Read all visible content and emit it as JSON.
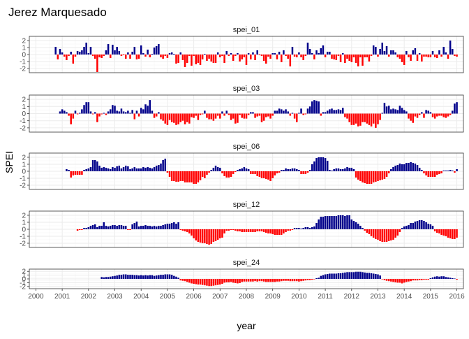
{
  "chart_data": {
    "type": "bar",
    "title": "Jerez Marquesado",
    "xlabel": "year",
    "ylabel": "SPEI",
    "xlim": [
      1999.75,
      2016.25
    ],
    "ylim": [
      -2.6,
      2.6
    ],
    "x_ticks": [
      "2000",
      "2001",
      "2002",
      "2003",
      "2004",
      "2005",
      "2006",
      "2007",
      "2008",
      "2009",
      "2010",
      "2011",
      "2012",
      "2013",
      "2014",
      "2015",
      "2016"
    ],
    "y_ticks": [
      "-2",
      "-1",
      "0",
      "1",
      "2"
    ],
    "grid": true,
    "colors": {
      "positive": "#00008B",
      "negative": "#FF0000",
      "panel_border": "#333333",
      "grid": "#EBEBEB",
      "strip_bg": "#FFFFFF"
    },
    "series_start": {
      "spei_01": 2000.75,
      "spei_03": 2000.917,
      "spei_06": 2001.167,
      "spei_12": 2001.583,
      "spei_24": 2002.5
    },
    "series_end": 2016.0,
    "panels": [
      {
        "name": "spei_01",
        "values": [
          1.1,
          -0.7,
          0.8,
          0.3,
          -0.3,
          -0.8,
          -0.2,
          0.4,
          -1.3,
          -0.3,
          0.5,
          0.4,
          0.6,
          1.1,
          1.7,
          0.2,
          1.1,
          -0.2,
          -0.6,
          -2.5,
          -0.4,
          -0.5,
          -0.2,
          0.6,
          1.5,
          -0.5,
          1.4,
          0.6,
          1.1,
          0.5,
          -0.2,
          -0.1,
          -0.6,
          0.3,
          -0.6,
          0.4,
          1.1,
          -0.7,
          -0.6,
          1.3,
          0.2,
          -0.3,
          0.7,
          -0.4,
          0.1,
          1.0,
          1.2,
          1.5,
          -0.4,
          -0.6,
          -0.2,
          -0.5,
          0.2,
          0.3,
          0.1,
          -1.3,
          -1.2,
          0.3,
          -0.8,
          -1.8,
          -1.2,
          -0.2,
          -1.6,
          -0.2,
          -1.4,
          -1.2,
          -1.5,
          -0.7,
          0.1,
          -0.9,
          -0.6,
          -1.0,
          -1.2,
          -1.2,
          0.3,
          -0.4,
          -0.2,
          -1.2,
          0.5,
          -0.2,
          0.2,
          -0.9,
          -0.2,
          0.2,
          -1.0,
          -0.7,
          -0.4,
          -1.5,
          0.2,
          -0.7,
          0.3,
          -0.8,
          0.6,
          -0.1,
          -0.2,
          -0.9,
          -1.3,
          -0.3,
          -0.6,
          0.2,
          0.2,
          -0.7,
          0.4,
          -1.1,
          0.6,
          -0.2,
          -0.6,
          -1.7,
          1.1,
          -0.3,
          -0.4,
          0.3,
          -0.4,
          -0.8,
          -0.2,
          1.7,
          0.8,
          0.2,
          -0.7,
          0.6,
          0.2,
          0.9,
          1.3,
          -0.4,
          0.4,
          0.4,
          -0.6,
          -0.7,
          -0.8,
          -0.2,
          -1.1,
          0.2,
          -1.2,
          -0.6,
          -0.9,
          -1.1,
          -0.4,
          -1.2,
          -1.7,
          -0.4,
          -1.6,
          -0.4,
          -0.4,
          -1.0,
          -0.2,
          1.3,
          1.1,
          -0.3,
          0.8,
          1.7,
          0.5,
          1.2,
          -0.3,
          0.6,
          0.6,
          0.3,
          -0.4,
          -0.6,
          -1.1,
          -1.5,
          0.5,
          -0.4,
          -0.9,
          0.6,
          0.9,
          -0.9,
          0.2,
          -1.0,
          -0.3,
          -0.3,
          -0.4,
          -0.4,
          0.5,
          -0.4,
          -0.5,
          0.6,
          -0.3,
          1.1,
          0.3,
          -0.6,
          2.0,
          0.8,
          -0.2,
          -0.3,
          0.4,
          -0.3,
          0.9,
          -0.6,
          -1.5
        ]
      },
      {
        "name": "spei_03",
        "values": [
          0.3,
          0.6,
          0.4,
          0.2,
          -0.3,
          -1.5,
          -0.7,
          0.4,
          -0.1,
          0.1,
          0.6,
          1.2,
          1.6,
          1.6,
          0.3,
          -0.1,
          0.2,
          -1.2,
          -0.4,
          -0.1,
          0.1,
          -0.2,
          0.3,
          0.6,
          1.2,
          1.1,
          0.4,
          0.3,
          0.7,
          0.3,
          0.2,
          0.4,
          0.1,
          0.5,
          -0.8,
          0.4,
          -0.4,
          0.8,
          0.6,
          1.3,
          1.1,
          1.9,
          0.4,
          -0.6,
          -0.4,
          0.2,
          -0.8,
          -1.0,
          -1.4,
          -1.6,
          -0.9,
          -1.2,
          -1.3,
          -1.6,
          -1.5,
          -1.2,
          -1.0,
          -1.5,
          -1.2,
          -1.4,
          -0.5,
          -0.6,
          -0.3,
          -0.9,
          -0.2,
          -0.1,
          0.4,
          -0.6,
          -0.8,
          -0.8,
          -1.0,
          -0.7,
          -0.3,
          -0.7,
          0.3,
          -0.3,
          0.4,
          -0.2,
          -0.9,
          -0.7,
          -1.4,
          -1.3,
          -0.2,
          -0.6,
          -0.7,
          -0.7,
          -0.2,
          0.2,
          0.2,
          -0.6,
          -0.4,
          -0.3,
          -1.2,
          -1.0,
          -0.5,
          -0.4,
          -0.7,
          -0.3,
          0.4,
          0.4,
          0.7,
          0.6,
          0.4,
          0.6,
          0.3,
          -0.3,
          0.1,
          -0.7,
          -1.2,
          0.1,
          0.7,
          -0.2,
          -0.1,
          0.7,
          1.0,
          1.7,
          1.9,
          1.8,
          1.7,
          -0.3,
          0.2,
          0.2,
          0.4,
          0.6,
          0.7,
          0.5,
          0.5,
          0.6,
          0.5,
          0.8,
          -0.5,
          -0.7,
          -1.2,
          -1.6,
          -1.6,
          -1.4,
          -1.8,
          -1.7,
          -1.2,
          -1.2,
          -1.4,
          -1.6,
          -1.8,
          -1.4,
          -2.0,
          -1.5,
          -0.9,
          0.1,
          1.5,
          1.0,
          1.1,
          0.6,
          0.7,
          0.6,
          0.5,
          1.1,
          0.8,
          0.5,
          0.3,
          -0.7,
          -1.0,
          -1.3,
          -0.4,
          -0.6,
          -0.2,
          0.2,
          -0.6,
          0.5,
          0.4,
          0.2,
          -0.5,
          -0.7,
          -0.4,
          -0.3,
          -0.3,
          -0.5,
          -0.6,
          -0.4,
          -0.2,
          0.4,
          1.4,
          1.6,
          1.5,
          -0.3,
          -0.6,
          -0.9,
          -1.0
        ]
      },
      {
        "name": "spei_06",
        "values": [
          0.3,
          0.2,
          -0.9,
          -0.6,
          -0.5,
          -0.5,
          -0.5,
          -0.5,
          0.2,
          0.3,
          0.4,
          0.6,
          1.6,
          1.6,
          1.4,
          0.8,
          0.5,
          0.6,
          0.5,
          0.4,
          0.3,
          0.6,
          0.5,
          0.7,
          0.8,
          0.4,
          0.6,
          0.8,
          0.7,
          0.3,
          0.4,
          0.6,
          0.4,
          0.4,
          0.4,
          0.6,
          0.5,
          0.6,
          0.5,
          0.4,
          0.6,
          0.8,
          0.9,
          1.1,
          1.6,
          1.8,
          -0.2,
          -0.8,
          -1.4,
          -1.4,
          -1.5,
          -1.5,
          -1.4,
          -1.4,
          -1.6,
          -1.6,
          -1.6,
          -1.6,
          -1.8,
          -1.8,
          -1.6,
          -1.3,
          -0.8,
          -1.0,
          -0.5,
          -0.2,
          0.2,
          0.5,
          0.8,
          0.6,
          0.5,
          -0.3,
          -0.7,
          -0.9,
          -0.9,
          -0.8,
          -0.4,
          -0.1,
          0.2,
          0.3,
          0.4,
          0.6,
          0.4,
          0.3,
          -0.4,
          -0.4,
          -0.4,
          -0.7,
          -0.8,
          -1.0,
          -1.0,
          -1.1,
          -1.2,
          -1.4,
          -1.0,
          -0.6,
          -0.3,
          -0.2,
          0.2,
          0.2,
          0.4,
          0.3,
          0.3,
          0.4,
          0.4,
          0.3,
          0.2,
          -0.4,
          -0.4,
          -0.4,
          -0.2,
          0.2,
          1.0,
          1.4,
          1.9,
          2.0,
          2.0,
          2.0,
          1.9,
          1.5,
          0.2,
          0.1,
          0.3,
          0.4,
          0.4,
          0.3,
          0.3,
          0.4,
          0.6,
          0.5,
          0.5,
          0.3,
          -0.9,
          -1.2,
          -1.4,
          -1.6,
          -1.7,
          -1.8,
          -1.8,
          -1.8,
          -1.6,
          -1.5,
          -1.4,
          -1.3,
          -1.2,
          -1.1,
          -0.8,
          -0.3,
          0.3,
          0.6,
          0.8,
          0.9,
          1.1,
          1.0,
          1.0,
          1.2,
          1.2,
          1.3,
          1.2,
          1.1,
          0.9,
          0.5,
          0.2,
          -0.3,
          -0.6,
          -0.8,
          -0.8,
          -0.8,
          -0.8,
          -0.5,
          -0.4,
          -0.3,
          0.1,
          0.1,
          0.1,
          0.2,
          0.1,
          -0.2,
          0.3,
          0.2,
          0.3,
          0.8,
          1.2,
          1.5,
          1.4,
          0.7,
          -0.6
        ]
      },
      {
        "name": "spei_12",
        "values": [
          -0.2,
          -0.1,
          -0.1,
          0.2,
          0.2,
          0.3,
          0.5,
          0.6,
          0.7,
          0.3,
          0.5,
          0.5,
          1.0,
          0.5,
          0.4,
          0.5,
          0.6,
          0.6,
          0.5,
          0.6,
          0.6,
          0.5,
          0.5,
          -0.1,
          -0.1,
          0.7,
          0.9,
          1.1,
          0.4,
          0.5,
          0.5,
          0.6,
          0.5,
          0.5,
          0.4,
          0.5,
          0.4,
          0.5,
          0.5,
          0.6,
          0.7,
          0.8,
          0.8,
          0.9,
          1.0,
          0.8,
          1.0,
          -0.1,
          -0.2,
          -0.3,
          -0.4,
          -0.6,
          -0.9,
          -1.3,
          -1.6,
          -1.8,
          -1.9,
          -2.0,
          -2.0,
          -2.1,
          -2.2,
          -2.1,
          -1.8,
          -1.7,
          -1.5,
          -1.3,
          -1.2,
          -0.6,
          -0.2,
          -0.2,
          -0.1,
          -0.1,
          -0.2,
          -0.3,
          -0.3,
          -0.4,
          -0.4,
          -0.4,
          -0.4,
          -0.4,
          -0.4,
          -0.4,
          -0.3,
          -0.3,
          -0.3,
          -0.4,
          -0.5,
          -0.6,
          -0.6,
          -0.7,
          -0.8,
          -0.8,
          -0.8,
          -0.8,
          -0.6,
          -0.4,
          -0.2,
          -0.2,
          -0.1,
          0.2,
          0.2,
          0.2,
          0.1,
          0.2,
          0.3,
          0.3,
          0.2,
          0.3,
          0.4,
          0.9,
          1.4,
          1.8,
          1.8,
          1.9,
          1.9,
          1.9,
          1.9,
          1.9,
          1.9,
          2.0,
          2.0,
          2.0,
          1.9,
          2.0,
          2.0,
          1.4,
          1.2,
          1.0,
          0.8,
          0.5,
          0.2,
          -0.2,
          -0.5,
          -0.7,
          -1.0,
          -1.2,
          -1.4,
          -1.5,
          -1.7,
          -1.8,
          -1.8,
          -1.8,
          -1.7,
          -1.6,
          -1.5,
          -1.2,
          -0.9,
          -0.4,
          0.2,
          0.4,
          0.5,
          0.6,
          0.9,
          0.9,
          1.1,
          1.2,
          1.3,
          1.3,
          1.2,
          1.0,
          0.8,
          0.7,
          0.5,
          -0.3,
          -0.5,
          -0.6,
          -0.8,
          -0.9,
          -1.0,
          -1.2,
          -1.3,
          -1.4,
          -1.4,
          -1.2,
          -1.2,
          -1.0,
          -0.8,
          -0.4,
          -0.2,
          -0.2,
          -0.2,
          0.1,
          0.6,
          -0.2,
          -0.4
        ]
      },
      {
        "name": "spei_24",
        "values": [
          0.5,
          0.4,
          0.5,
          0.5,
          0.6,
          0.7,
          0.8,
          0.9,
          1.1,
          1.1,
          1.2,
          1.2,
          1.1,
          1.1,
          1.1,
          1.0,
          1.0,
          0.9,
          1.0,
          0.9,
          1.0,
          0.9,
          1.0,
          1.0,
          0.8,
          0.9,
          1.0,
          1.1,
          1.1,
          1.2,
          1.2,
          1.2,
          1.1,
          0.8,
          0.6,
          0.3,
          -0.4,
          -0.5,
          -0.6,
          -0.8,
          -1.0,
          -1.2,
          -1.3,
          -1.4,
          -1.5,
          -1.5,
          -1.6,
          -1.7,
          -1.8,
          -1.9,
          -1.9,
          -1.8,
          -1.7,
          -1.6,
          -1.5,
          -1.3,
          -1.0,
          -0.9,
          -0.9,
          -0.8,
          -1.0,
          -1.1,
          -1.2,
          -1.1,
          -0.8,
          -0.7,
          -0.7,
          -0.7,
          -0.7,
          -0.7,
          -0.6,
          -0.7,
          -0.6,
          -0.6,
          -0.7,
          -0.8,
          -0.8,
          -0.8,
          -0.8,
          -0.8,
          -0.7,
          -0.7,
          -0.6,
          -0.5,
          -0.5,
          -0.5,
          -0.6,
          -0.6,
          -0.6,
          -0.6,
          -0.7,
          -0.6,
          -0.5,
          -0.4,
          -0.3,
          -0.3,
          -0.2,
          -0.1,
          0.2,
          0.3,
          0.8,
          1.0,
          1.2,
          1.3,
          1.4,
          1.4,
          1.4,
          1.4,
          1.5,
          1.5,
          1.6,
          1.7,
          1.8,
          1.8,
          1.8,
          1.8,
          1.9,
          1.9,
          1.9,
          1.8,
          1.7,
          1.6,
          1.6,
          1.5,
          1.4,
          1.3,
          1.2,
          0.9,
          -0.1,
          -0.3,
          -0.5,
          -0.6,
          -0.7,
          -0.8,
          -0.9,
          -1.0,
          -1.0,
          -1.2,
          -1.0,
          -0.8,
          -0.7,
          -0.6,
          -0.4,
          -0.4,
          -0.4,
          -0.3,
          -0.3,
          -0.2,
          -0.2,
          -0.2,
          0.2,
          0.4,
          0.6,
          0.7,
          0.6,
          0.7,
          0.7,
          0.5,
          0.4,
          0.3,
          0.2,
          0.1,
          -0.2,
          -0.3,
          -0.4,
          -0.4,
          -0.4,
          -0.5,
          -0.5,
          -0.5,
          -0.6,
          -0.8
        ]
      }
    ]
  }
}
